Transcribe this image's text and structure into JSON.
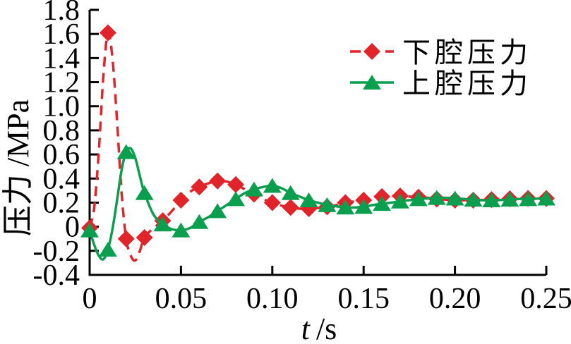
{
  "figure": {
    "background": "#ffffff",
    "axis_color": "#000000",
    "text_color": "#000000"
  },
  "chart_data": {
    "type": "line",
    "title": "",
    "xlabel_var": "t",
    "xlabel_unit": "/s",
    "ylabel": "压力 /MPa",
    "xlim": [
      0,
      0.25
    ],
    "ylim": [
      -0.4,
      1.8
    ],
    "grid": false,
    "legend_position": "upper-right-inside",
    "xticks": [
      {
        "value": 0,
        "label": "0"
      },
      {
        "value": 0.05,
        "label": "0.05"
      },
      {
        "value": 0.1,
        "label": "0.10"
      },
      {
        "value": 0.15,
        "label": "0.15"
      },
      {
        "value": 0.2,
        "label": "0.20"
      },
      {
        "value": 0.25,
        "label": "0.25"
      }
    ],
    "yticks": [
      {
        "value": 1.8,
        "label": "1.8"
      },
      {
        "value": 1.6,
        "label": "1.6"
      },
      {
        "value": 1.4,
        "label": "1.4"
      },
      {
        "value": 1.2,
        "label": "1.2"
      },
      {
        "value": 1.0,
        "label": "1.0"
      },
      {
        "value": 0.8,
        "label": "0.8"
      },
      {
        "value": 0.6,
        "label": "0.6"
      },
      {
        "value": 0.4,
        "label": "0.4"
      },
      {
        "value": 0.2,
        "label": "0.2"
      },
      {
        "value": 0,
        "label": "0"
      },
      {
        "value": -0.2,
        "label": "-0.2"
      },
      {
        "value": -0.4,
        "label": "-0.4"
      }
    ],
    "marker_interval_s": 0.01,
    "series": [
      {
        "name": "下腔压力",
        "color": "#e0242a",
        "line_style": "dashed",
        "marker": "diamond",
        "points": [
          [
            0,
            -0.01
          ],
          [
            0.0025,
            0.16
          ],
          [
            0.005,
            0.62
          ],
          [
            0.0075,
            1.25
          ],
          [
            0.01,
            1.61
          ],
          [
            0.0125,
            1.4
          ],
          [
            0.015,
            0.88
          ],
          [
            0.0175,
            0.28
          ],
          [
            0.02,
            -0.1
          ],
          [
            0.0225,
            -0.24
          ],
          [
            0.025,
            -0.28
          ],
          [
            0.0275,
            -0.2
          ],
          [
            0.03,
            -0.09
          ],
          [
            0.035,
            -0.01
          ],
          [
            0.04,
            0.05
          ],
          [
            0.045,
            0.13
          ],
          [
            0.05,
            0.22
          ],
          [
            0.055,
            0.29
          ],
          [
            0.06,
            0.33
          ],
          [
            0.065,
            0.36
          ],
          [
            0.07,
            0.38
          ],
          [
            0.075,
            0.375
          ],
          [
            0.08,
            0.35
          ],
          [
            0.085,
            0.31
          ],
          [
            0.09,
            0.27
          ],
          [
            0.095,
            0.23
          ],
          [
            0.1,
            0.2
          ],
          [
            0.105,
            0.175
          ],
          [
            0.11,
            0.16
          ],
          [
            0.115,
            0.15
          ],
          [
            0.12,
            0.15
          ],
          [
            0.125,
            0.155
          ],
          [
            0.13,
            0.165
          ],
          [
            0.135,
            0.18
          ],
          [
            0.14,
            0.2
          ],
          [
            0.145,
            0.21
          ],
          [
            0.15,
            0.22
          ],
          [
            0.155,
            0.235
          ],
          [
            0.16,
            0.25
          ],
          [
            0.165,
            0.255
          ],
          [
            0.17,
            0.255
          ],
          [
            0.175,
            0.25
          ],
          [
            0.18,
            0.245
          ],
          [
            0.185,
            0.24
          ],
          [
            0.19,
            0.23
          ],
          [
            0.195,
            0.225
          ],
          [
            0.2,
            0.22
          ],
          [
            0.205,
            0.22
          ],
          [
            0.21,
            0.22
          ],
          [
            0.215,
            0.222
          ],
          [
            0.22,
            0.225
          ],
          [
            0.225,
            0.23
          ],
          [
            0.23,
            0.232
          ],
          [
            0.235,
            0.235
          ],
          [
            0.24,
            0.235
          ],
          [
            0.245,
            0.235
          ],
          [
            0.25,
            0.235
          ]
        ]
      },
      {
        "name": "上腔压力",
        "color": "#0a9f4f",
        "line_style": "solid",
        "marker": "triangle",
        "points": [
          [
            0,
            -0.03
          ],
          [
            0.0025,
            -0.15
          ],
          [
            0.005,
            -0.24
          ],
          [
            0.0075,
            -0.27
          ],
          [
            0.01,
            -0.19
          ],
          [
            0.0125,
            -0.02
          ],
          [
            0.015,
            0.22
          ],
          [
            0.0175,
            0.47
          ],
          [
            0.02,
            0.62
          ],
          [
            0.0225,
            0.65
          ],
          [
            0.025,
            0.57
          ],
          [
            0.0275,
            0.42
          ],
          [
            0.03,
            0.28
          ],
          [
            0.035,
            0.1
          ],
          [
            0.04,
            0.02
          ],
          [
            0.045,
            -0.02
          ],
          [
            0.05,
            -0.03
          ],
          [
            0.055,
            -0.01
          ],
          [
            0.06,
            0.04
          ],
          [
            0.065,
            0.08
          ],
          [
            0.07,
            0.13
          ],
          [
            0.075,
            0.18
          ],
          [
            0.08,
            0.23
          ],
          [
            0.085,
            0.28
          ],
          [
            0.09,
            0.31
          ],
          [
            0.095,
            0.33
          ],
          [
            0.1,
            0.34
          ],
          [
            0.105,
            0.32
          ],
          [
            0.11,
            0.28
          ],
          [
            0.115,
            0.25
          ],
          [
            0.12,
            0.22
          ],
          [
            0.125,
            0.2
          ],
          [
            0.13,
            0.18
          ],
          [
            0.135,
            0.17
          ],
          [
            0.14,
            0.16
          ],
          [
            0.145,
            0.16
          ],
          [
            0.15,
            0.165
          ],
          [
            0.155,
            0.18
          ],
          [
            0.16,
            0.19
          ],
          [
            0.165,
            0.2
          ],
          [
            0.17,
            0.21
          ],
          [
            0.175,
            0.22
          ],
          [
            0.18,
            0.23
          ],
          [
            0.185,
            0.235
          ],
          [
            0.19,
            0.24
          ],
          [
            0.195,
            0.24
          ],
          [
            0.2,
            0.235
          ],
          [
            0.205,
            0.23
          ],
          [
            0.21,
            0.225
          ],
          [
            0.215,
            0.22
          ],
          [
            0.22,
            0.22
          ],
          [
            0.225,
            0.222
          ],
          [
            0.23,
            0.225
          ],
          [
            0.235,
            0.23
          ],
          [
            0.24,
            0.23
          ],
          [
            0.245,
            0.233
          ],
          [
            0.25,
            0.235
          ]
        ]
      }
    ]
  }
}
